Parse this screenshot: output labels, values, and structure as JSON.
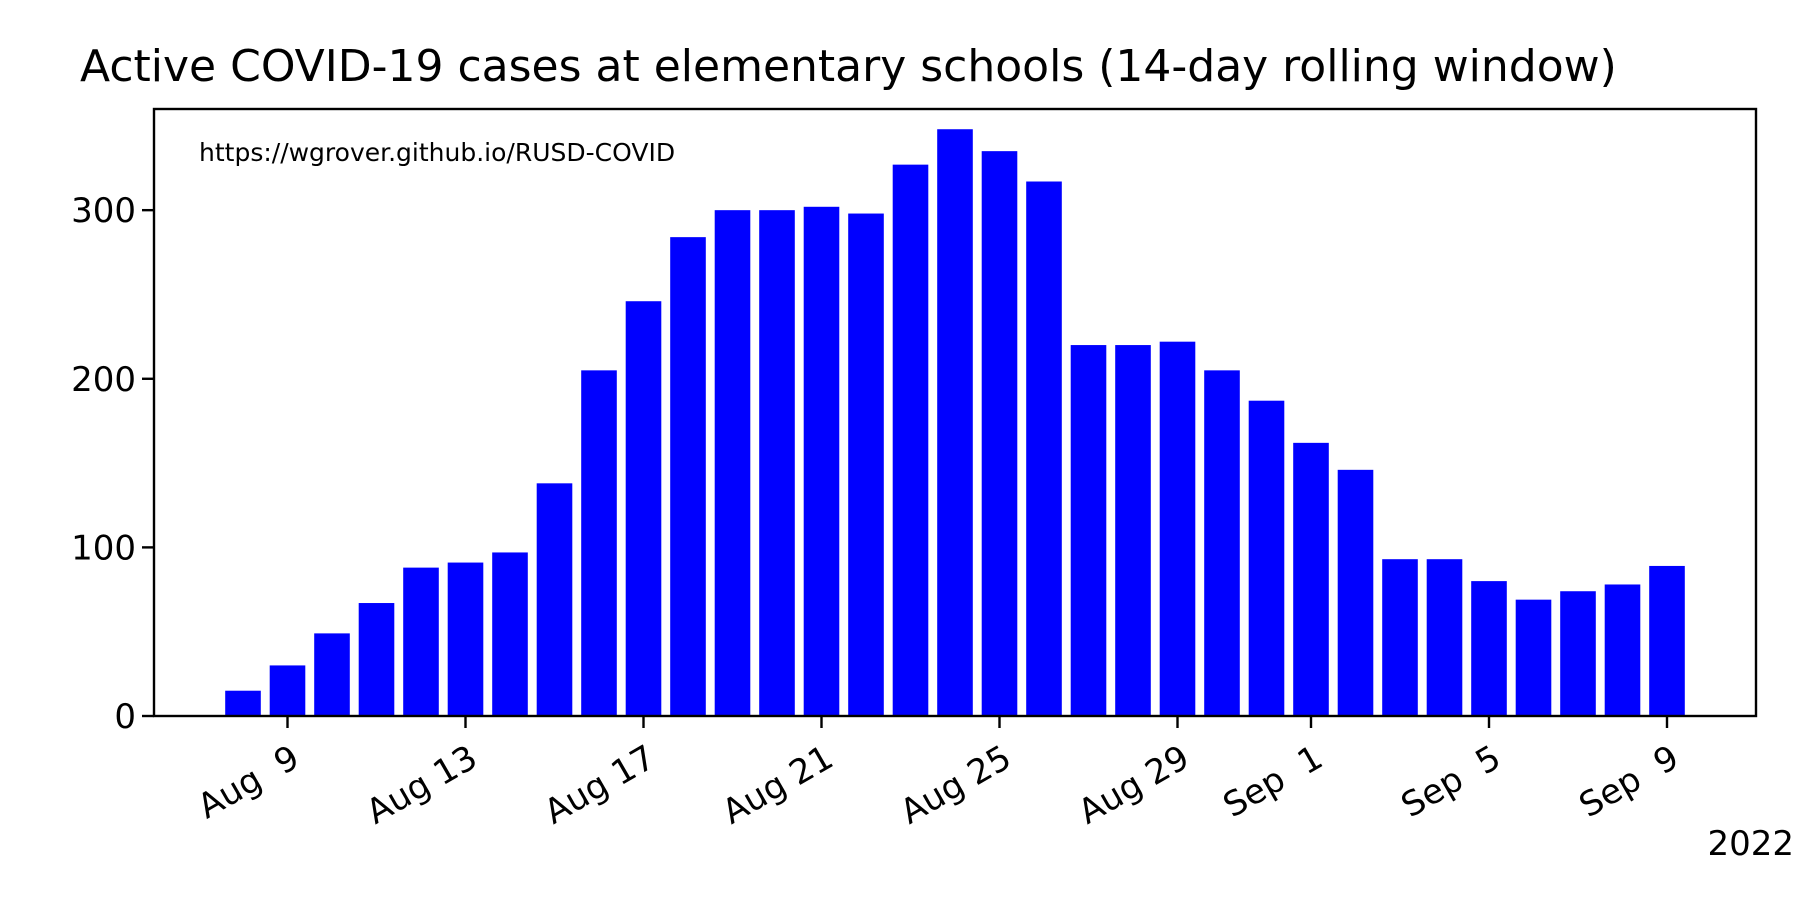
{
  "chart_data": {
    "type": "bar",
    "title": "Active COVID-19 cases at elementary schools (14-day rolling window)",
    "annotation": "https://wgrover.github.io/RUSD-COVID",
    "xlabel": "",
    "ylabel": "",
    "x": [
      "2022-08-08",
      "2022-08-09",
      "2022-08-10",
      "2022-08-11",
      "2022-08-12",
      "2022-08-13",
      "2022-08-14",
      "2022-08-15",
      "2022-08-16",
      "2022-08-17",
      "2022-08-18",
      "2022-08-19",
      "2022-08-20",
      "2022-08-21",
      "2022-08-22",
      "2022-08-23",
      "2022-08-24",
      "2022-08-25",
      "2022-08-26",
      "2022-08-27",
      "2022-08-28",
      "2022-08-29",
      "2022-08-30",
      "2022-08-31",
      "2022-09-01",
      "2022-09-02",
      "2022-09-03",
      "2022-09-04",
      "2022-09-05",
      "2022-09-06",
      "2022-09-07",
      "2022-09-08",
      "2022-09-09"
    ],
    "values": [
      15,
      30,
      49,
      67,
      88,
      91,
      97,
      138,
      205,
      246,
      284,
      300,
      300,
      302,
      298,
      327,
      348,
      335,
      317,
      220,
      220,
      222,
      205,
      187,
      162,
      146,
      93,
      93,
      80,
      69,
      74,
      78,
      89
    ],
    "xlim": [
      "2022-08-06",
      "2022-09-11"
    ],
    "ylim": [
      0,
      360
    ],
    "yticks": [
      0,
      100,
      200,
      300
    ],
    "xtick_dates": [
      "2022-08-09",
      "2022-08-13",
      "2022-08-17",
      "2022-08-21",
      "2022-08-25",
      "2022-08-29",
      "2022-09-01",
      "2022-09-05",
      "2022-09-09"
    ],
    "xtick_labels": [
      "Aug  9",
      "Aug 13",
      "Aug 17",
      "Aug 21",
      "Aug 25",
      "Aug 29",
      "Sep  1",
      "Sep  5",
      "Sep  9"
    ],
    "year_label": "2022",
    "grid": false,
    "legend": "none",
    "bar_color": "#0000ff"
  }
}
